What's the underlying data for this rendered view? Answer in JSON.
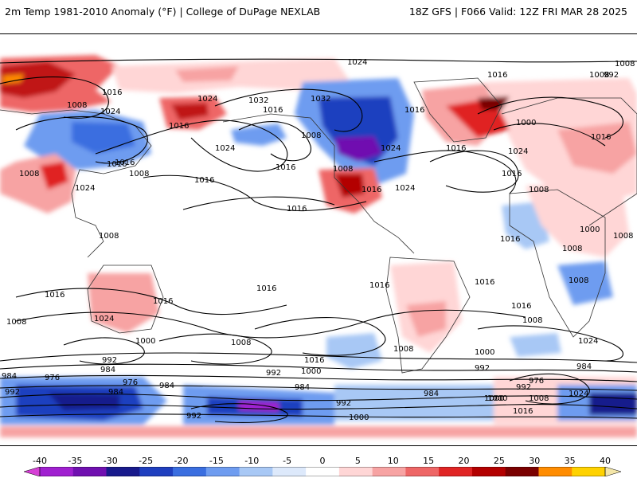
{
  "header": {
    "title_left": "2m Temp 1981-2010 Anomaly (°F) | College of DuPage NEXLAB",
    "title_right": "18Z GFS | F066 Valid: 12Z FRI MAR 28 2025"
  },
  "colorbar": {
    "labels": [
      "-40",
      "-35",
      "-30",
      "-25",
      "-20",
      "-15",
      "-10",
      "-5",
      "0",
      "5",
      "10",
      "15",
      "20",
      "25",
      "30",
      "35",
      "40"
    ],
    "colors": [
      "#d63fd6",
      "#a020d0",
      "#7010b0",
      "#181a8c",
      "#1f3fbf",
      "#3a6ee0",
      "#6e9cf0",
      "#a8c8f5",
      "#dde9fb",
      "#ffffff",
      "#ffd6d6",
      "#f7a3a3",
      "#ee6666",
      "#e02424",
      "#b30000",
      "#7a0000",
      "#ff8c00",
      "#ffd200",
      "#f4e6a8"
    ]
  },
  "isobar_labels": [
    "1024",
    "1008",
    "1016",
    "1008",
    "992",
    "1024",
    "1016",
    "1024",
    "1016",
    "1032",
    "1016",
    "1032",
    "1008",
    "1024",
    "1016",
    "1008",
    "1016",
    "1024",
    "1016",
    "1008",
    "1016",
    "1016",
    "1000",
    "1016",
    "1016",
    "1024",
    "1008",
    "1016",
    "1008",
    "1016",
    "1024",
    "1016",
    "1008",
    "1016",
    "1024",
    "1008",
    "1000",
    "1008",
    "1008",
    "1008",
    "1016",
    "1016",
    "1016",
    "1016",
    "1016",
    "1024",
    "1000",
    "1008",
    "1016",
    "1008",
    "1008",
    "1000",
    "1016",
    "1024",
    "992",
    "984",
    "984",
    "992",
    "1000",
    "976",
    "984",
    "992",
    "984",
    "992",
    "992",
    "1000",
    "984",
    "1000",
    "992",
    "976",
    "992",
    "1008",
    "1000",
    "1024",
    "984",
    "1016",
    "1008",
    "976",
    "984"
  ]
}
